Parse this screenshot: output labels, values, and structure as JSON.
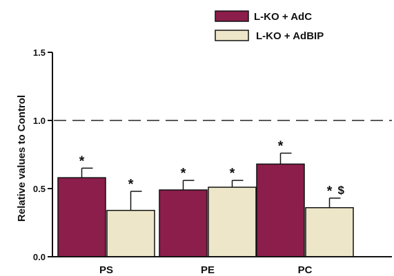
{
  "chart_data": {
    "type": "bar",
    "ylabel": "Relative values to Control",
    "xlabel": "",
    "ylim": [
      0,
      1.5
    ],
    "yticks": [
      "0.0",
      "0.5",
      "1.0",
      "1.5"
    ],
    "reference_line": 1.0,
    "legend_position": "top-right",
    "categories": [
      "PS",
      "PE",
      "PC"
    ],
    "series": [
      {
        "name": "L-KO + AdC",
        "color": "#8B1E4A",
        "values": [
          0.58,
          0.49,
          0.68
        ],
        "errors": [
          0.07,
          0.07,
          0.08
        ],
        "annotations": [
          "*",
          "*",
          "*"
        ]
      },
      {
        "name": "L-KO + AdBIP",
        "color": "#EDE6C8",
        "values": [
          0.34,
          0.51,
          0.36
        ],
        "errors": [
          0.14,
          0.05,
          0.07
        ],
        "annotations": [
          "*",
          "*",
          "* $"
        ]
      }
    ]
  }
}
